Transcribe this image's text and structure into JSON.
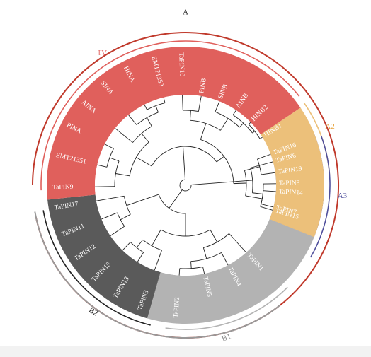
{
  "tree": {
    "groups": [
      {
        "id": "A1",
        "label": "A1",
        "label_rotated": true,
        "color": "#e0605c"
      },
      {
        "id": "A2",
        "label": "A2",
        "color": "#ecc07a"
      },
      {
        "id": "A3",
        "label": "A3",
        "color": "#4f4f9c"
      },
      {
        "id": "B1",
        "label": "B1",
        "color": "#b3b3b3"
      },
      {
        "id": "B2",
        "label": "B2",
        "color": "#5a5a5a"
      }
    ],
    "clades": [
      {
        "id": "A",
        "label": "A",
        "color": "#c0392b"
      },
      {
        "id": "B",
        "label": "",
        "color": "#999999"
      }
    ],
    "leaves": [
      {
        "name": "TaPIN6",
        "group": "A3"
      },
      {
        "name": "TaPIN8",
        "group": "A3"
      },
      {
        "name": "TaPIN7",
        "group": "A3"
      },
      {
        "name": "TaPIN1",
        "group": "B1"
      },
      {
        "name": "TaPIN4",
        "group": "B1"
      },
      {
        "name": "TaPIN5",
        "group": "B1"
      },
      {
        "name": "TaPIN2",
        "group": "B1"
      },
      {
        "name": "TaPIN3",
        "group": "B1"
      },
      {
        "name": "TaPIN13",
        "group": "B2"
      },
      {
        "name": "TaPIN18",
        "group": "B2"
      },
      {
        "name": "TaPIN12",
        "group": "B2"
      },
      {
        "name": "TaPIN11",
        "group": "B2"
      },
      {
        "name": "TaPIN17",
        "group": "B2"
      },
      {
        "name": "TaPIN9",
        "group": "A1"
      },
      {
        "name": "EMT21351",
        "group": "A1"
      },
      {
        "name": "PINA",
        "group": "A1"
      },
      {
        "name": "AINA",
        "group": "A1"
      },
      {
        "name": "SINA",
        "group": "A1"
      },
      {
        "name": "HINA",
        "group": "A1"
      },
      {
        "name": "EMT21353",
        "group": "A1"
      },
      {
        "name": "TaPIN10",
        "group": "A1"
      },
      {
        "name": "PINB",
        "group": "A1"
      },
      {
        "name": "SINB",
        "group": "A1"
      },
      {
        "name": "AINB",
        "group": "A1"
      },
      {
        "name": "HINB2",
        "group": "A1"
      },
      {
        "name": "HINB1",
        "group": "A1"
      },
      {
        "name": "TaPIN16",
        "group": "A2"
      },
      {
        "name": "TaPIN19",
        "group": "A2"
      },
      {
        "name": "TaPIN14",
        "group": "A2"
      },
      {
        "name": "TaPIN15",
        "group": "A2"
      }
    ]
  }
}
